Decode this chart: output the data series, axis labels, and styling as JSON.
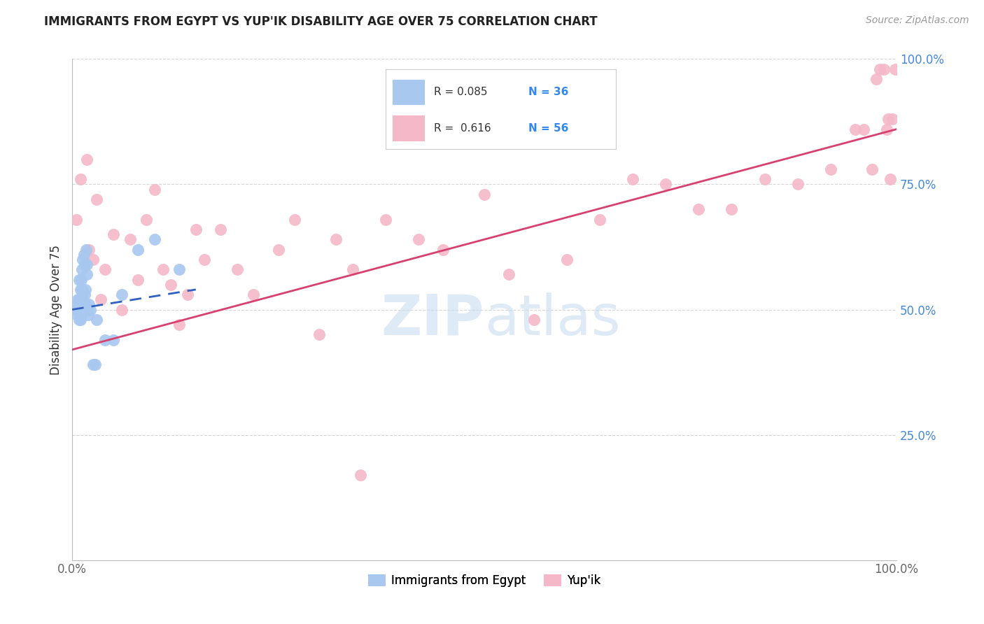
{
  "title": "IMMIGRANTS FROM EGYPT VS YUP'IK DISABILITY AGE OVER 75 CORRELATION CHART",
  "source": "Source: ZipAtlas.com",
  "ylabel": "Disability Age Over 75",
  "xlim": [
    0.0,
    1.0
  ],
  "ylim": [
    0.0,
    1.0
  ],
  "egypt_color": "#a8c8f0",
  "egypt_edge_color": "#a8c8f0",
  "yupik_color": "#f5b8c8",
  "yupik_edge_color": "#f5b8c8",
  "egypt_line_color": "#3060c0",
  "yupik_line_color": "#d84070",
  "background_color": "#ffffff",
  "grid_color": "#cccccc",
  "ytick_color": "#4488dd",
  "xtick_color": "#666666",
  "title_color": "#222222",
  "source_color": "#999999",
  "ylabel_color": "#333333",
  "watermark_color": "#c8ddf0",
  "legend_r_color": "#333333",
  "legend_n_color": "#3388ee",
  "egypt_scatter_x": [
    0.005,
    0.006,
    0.007,
    0.007,
    0.008,
    0.008,
    0.009,
    0.01,
    0.01,
    0.01,
    0.011,
    0.011,
    0.012,
    0.012,
    0.013,
    0.013,
    0.014,
    0.015,
    0.015,
    0.016,
    0.016,
    0.017,
    0.018,
    0.018,
    0.019,
    0.02,
    0.022,
    0.025,
    0.028,
    0.03,
    0.04,
    0.05,
    0.06,
    0.08,
    0.1,
    0.13
  ],
  "egypt_scatter_y": [
    0.5,
    0.49,
    0.51,
    0.52,
    0.48,
    0.56,
    0.52,
    0.48,
    0.51,
    0.54,
    0.56,
    0.49,
    0.58,
    0.54,
    0.53,
    0.6,
    0.61,
    0.53,
    0.59,
    0.54,
    0.51,
    0.62,
    0.57,
    0.59,
    0.49,
    0.51,
    0.5,
    0.39,
    0.39,
    0.48,
    0.44,
    0.44,
    0.53,
    0.62,
    0.64,
    0.58
  ],
  "yupik_scatter_x": [
    0.005,
    0.01,
    0.015,
    0.018,
    0.02,
    0.025,
    0.03,
    0.035,
    0.04,
    0.05,
    0.06,
    0.07,
    0.08,
    0.09,
    0.1,
    0.11,
    0.12,
    0.13,
    0.14,
    0.15,
    0.16,
    0.18,
    0.2,
    0.22,
    0.25,
    0.27,
    0.3,
    0.32,
    0.34,
    0.35,
    0.38,
    0.42,
    0.45,
    0.5,
    0.53,
    0.56,
    0.6,
    0.64,
    0.68,
    0.72,
    0.76,
    0.8,
    0.84,
    0.88,
    0.92,
    0.95,
    0.96,
    0.97,
    0.975,
    0.98,
    0.985,
    0.988,
    0.99,
    0.992,
    0.995,
    0.998
  ],
  "yupik_scatter_y": [
    0.68,
    0.76,
    0.59,
    0.8,
    0.62,
    0.6,
    0.72,
    0.52,
    0.58,
    0.65,
    0.5,
    0.64,
    0.56,
    0.68,
    0.74,
    0.58,
    0.55,
    0.47,
    0.53,
    0.66,
    0.6,
    0.66,
    0.58,
    0.53,
    0.62,
    0.68,
    0.45,
    0.64,
    0.58,
    0.17,
    0.68,
    0.64,
    0.62,
    0.73,
    0.57,
    0.48,
    0.6,
    0.68,
    0.76,
    0.75,
    0.7,
    0.7,
    0.76,
    0.75,
    0.78,
    0.86,
    0.86,
    0.78,
    0.96,
    0.98,
    0.98,
    0.86,
    0.88,
    0.76,
    0.88,
    0.98
  ],
  "egypt_line_x": [
    0.0,
    0.15
  ],
  "egypt_line_y": [
    0.5,
    0.54
  ],
  "yupik_line_x": [
    0.0,
    1.0
  ],
  "yupik_line_y": [
    0.42,
    0.86
  ],
  "ytick_positions": [
    0.25,
    0.5,
    0.75,
    1.0
  ],
  "ytick_labels": [
    "25.0%",
    "50.0%",
    "75.0%",
    "100.0%"
  ],
  "xtick_positions": [
    0.0,
    1.0
  ],
  "xtick_labels": [
    "0.0%",
    "100.0%"
  ]
}
